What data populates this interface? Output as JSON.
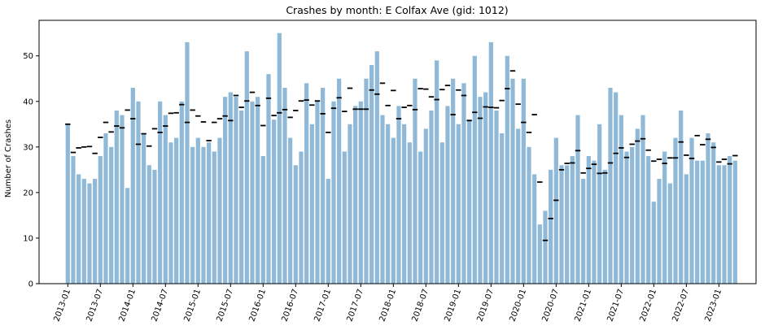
{
  "chart_data": {
    "type": "bar",
    "title": "Crashes by month: E Colfax Ave (gid: 1012)",
    "xlabel": "",
    "ylabel": "Number of Crashes",
    "ylim": [
      0,
      57.8
    ],
    "yticks": [
      0,
      10,
      20,
      30,
      40,
      50
    ],
    "start_month": "2013-01",
    "xtick_labels": [
      "2013-01",
      "2013-07",
      "2014-01",
      "2014-07",
      "2015-01",
      "2015-07",
      "2016-01",
      "2016-07",
      "2017-01",
      "2017-07",
      "2018-01",
      "2018-07",
      "2019-01",
      "2019-07",
      "2020-01",
      "2020-07",
      "2021-01",
      "2021-07",
      "2022-01",
      "2022-07",
      "2023-01"
    ],
    "bar_color": "#8fb9d7",
    "marker_color": "#000000",
    "values": [
      35,
      28,
      24,
      23,
      22,
      23,
      28,
      33,
      30,
      38,
      37,
      21,
      43,
      40,
      33,
      26,
      25,
      40,
      37,
      31,
      32,
      40,
      53,
      30,
      32,
      30,
      31,
      29,
      32,
      41,
      42,
      41,
      38,
      51,
      40,
      41,
      28,
      46,
      36,
      55,
      43,
      32,
      26,
      29,
      44,
      35,
      40,
      43,
      23,
      40,
      45,
      29,
      35,
      39,
      40,
      45,
      48,
      51,
      37,
      35,
      32,
      39,
      35,
      31,
      45,
      29,
      34,
      38,
      49,
      31,
      39,
      45,
      35,
      44,
      36,
      50,
      41,
      42,
      53,
      38,
      33,
      50,
      45,
      34,
      45,
      30,
      24,
      13,
      16,
      25,
      32,
      26,
      26,
      28,
      37,
      23,
      28,
      27,
      35,
      25,
      43,
      42,
      37,
      29,
      30,
      34,
      37,
      28,
      18,
      23,
      29,
      22,
      32,
      38,
      24,
      32,
      27,
      27,
      33,
      31,
      26,
      26,
      28,
      27
    ],
    "expected": [
      35,
      28.8,
      29.8,
      30,
      30.1,
      28.6,
      32.1,
      35.4,
      33.3,
      34.6,
      34.2,
      38.1,
      36.2,
      30.6,
      32.9,
      30.2,
      34,
      33.2,
      34.6,
      37.4,
      37.5,
      39.3,
      35.4,
      38.1,
      36.8,
      35.5,
      31.4,
      35.4,
      36.2,
      36.8,
      35.8,
      41.3,
      38.7,
      40.1,
      42,
      39.1,
      34.7,
      40.7,
      36.9,
      37.5,
      38.2,
      36.5,
      38,
      40.1,
      40.3,
      39.2,
      40.1,
      37.3,
      33.2,
      38.5,
      40.8,
      37.8,
      42.9,
      38.3,
      38.3,
      38.3,
      42.5,
      41.6,
      44,
      39.1,
      42.4,
      36.2,
      38.7,
      39.1,
      38.2,
      42.8,
      42.7,
      41,
      40.4,
      42.6,
      43.5,
      37.1,
      42.5,
      41.3,
      35.8,
      37.6,
      36.3,
      38.8,
      38.7,
      38.6,
      40.2,
      42.8,
      46.7,
      39.4,
      35.4,
      33.2,
      37.1,
      22.3,
      9.5,
      14.3,
      18.3,
      25,
      26.4,
      26.5,
      29.2,
      24.3,
      25.3,
      26.2,
      24.2,
      24.3,
      26.5,
      28.6,
      29.8,
      27.7,
      30.6,
      31.3,
      31.8,
      29.3,
      26.9,
      27.3,
      26.4,
      27.6,
      27.6,
      31.1,
      28.2,
      27.5,
      32.5,
      30.5,
      31.7,
      29.9,
      26.7,
      27.3,
      26.3,
      28.1
    ]
  }
}
